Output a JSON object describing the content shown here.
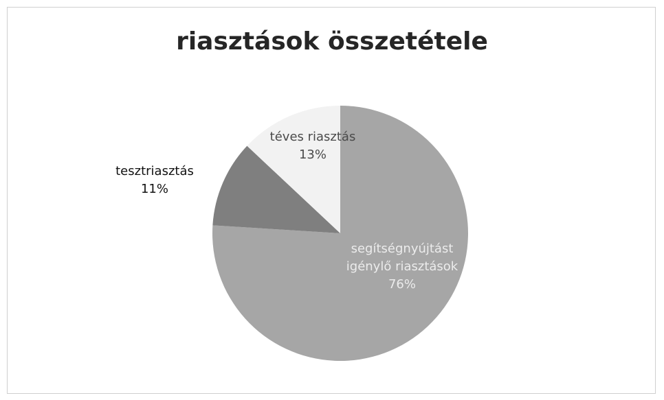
{
  "chart_data": {
    "type": "pie",
    "title": "riasztások összetétele",
    "categories": [
      "segítségnyújtást igénylő riasztások",
      "tesztriasztás",
      "téves riasztás"
    ],
    "values": [
      76,
      11,
      13
    ],
    "value_labels": [
      "76%",
      "11%",
      "13%"
    ],
    "colors": [
      "#a6a6a6",
      "#7f7f7f",
      "#f2f2f2"
    ]
  }
}
